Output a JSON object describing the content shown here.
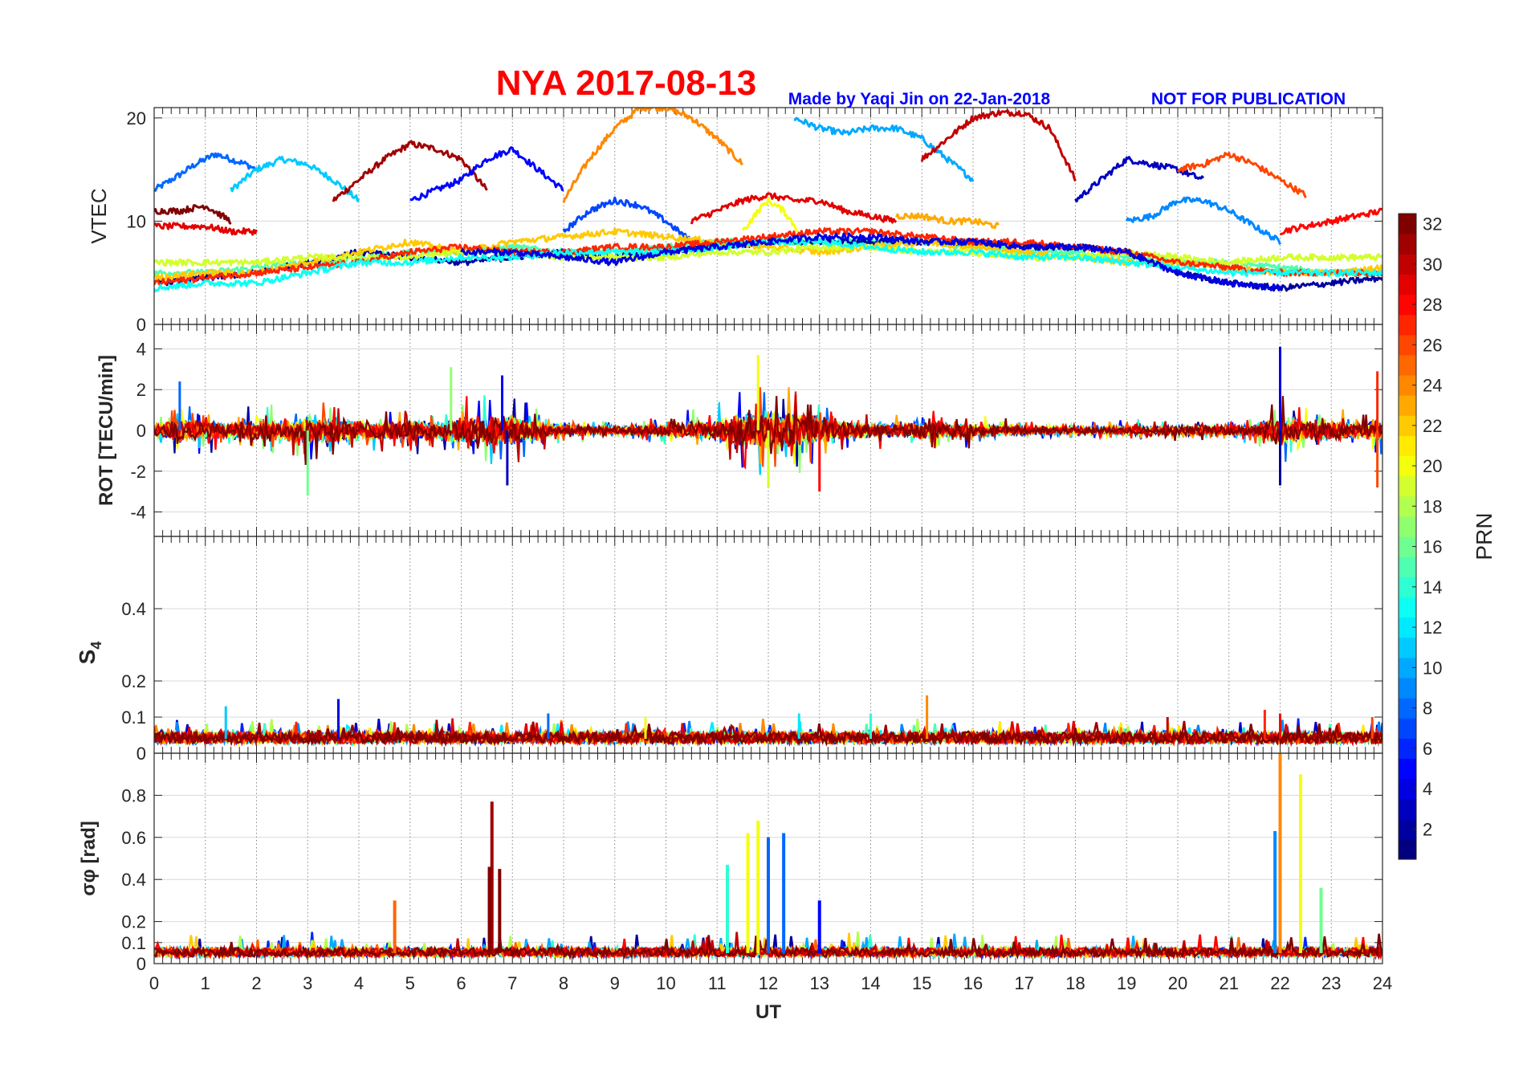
{
  "header": {
    "title": "NYA   2017-08-13",
    "credit": "Made by Yaqi Jin on 22-Jan-2018",
    "notice": "NOT FOR PUBLICATION"
  },
  "colors": {
    "title": "#ff0000",
    "credit": "#0000ff",
    "notice": "#0000ff",
    "grid": "#d9d9d9",
    "vgrid": "#888888",
    "axis": "#262626"
  },
  "chart_data": [
    {
      "type": "line",
      "panel": "VTEC",
      "ylabel": "VTEC",
      "ylim": [
        0,
        21
      ],
      "yticks": [
        0,
        10,
        20
      ],
      "xlim": [
        0,
        24
      ],
      "grid": true,
      "series": [
        {
          "prn": 8,
          "x": [
            0,
            0.5,
            0.8,
            1,
            1.2,
            1.5,
            1.8,
            2.0
          ],
          "y": [
            13,
            14.5,
            15.5,
            16,
            16.5,
            16,
            15.5,
            15
          ]
        },
        {
          "prn": 11,
          "x": [
            1.5,
            2,
            2.5,
            3,
            3.5,
            4.0
          ],
          "y": [
            13,
            15,
            16,
            15.5,
            14,
            12
          ]
        },
        {
          "prn": 31,
          "x": [
            3.5,
            4,
            4.5,
            5,
            5.5,
            6,
            6.5
          ],
          "y": [
            12,
            14,
            16,
            17.5,
            17,
            16,
            13
          ]
        },
        {
          "prn": 5,
          "x": [
            5,
            5.5,
            6,
            6.5,
            7,
            7.5,
            8.0
          ],
          "y": [
            12,
            13,
            14,
            16,
            17,
            15,
            13
          ]
        },
        {
          "prn": 24,
          "x": [
            8,
            8.5,
            9,
            9.5,
            10,
            10.5,
            11,
            11.5
          ],
          "y": [
            12,
            16,
            19,
            21,
            21,
            20,
            18,
            15.5
          ]
        },
        {
          "prn": 10,
          "x": [
            12.5,
            13,
            13.5,
            14,
            14.5,
            15,
            15.5,
            16
          ],
          "y": [
            20,
            19,
            18.5,
            19,
            19,
            18,
            16,
            14
          ]
        },
        {
          "prn": 30,
          "x": [
            15,
            15.5,
            16,
            16.5,
            17,
            17.5,
            18.0
          ],
          "y": [
            16,
            18,
            20,
            20.5,
            20.5,
            19,
            14
          ]
        },
        {
          "prn": 3,
          "x": [
            18,
            18.5,
            19,
            19.5,
            20,
            20.5
          ],
          "y": [
            12,
            14,
            16,
            15.5,
            15,
            14
          ]
        },
        {
          "prn": 26,
          "x": [
            20,
            20.5,
            21,
            21.5,
            22,
            22.5
          ],
          "y": [
            15,
            15.5,
            16.5,
            15.5,
            14,
            12.5
          ]
        },
        {
          "prn": 9,
          "x": [
            19,
            19.5,
            20,
            20.5,
            21,
            21.5,
            22
          ],
          "y": [
            10,
            10.5,
            12,
            12,
            11,
            9.5,
            8
          ]
        },
        {
          "prn": 28,
          "x": [
            22,
            22.5,
            23,
            23.5,
            24
          ],
          "y": [
            9,
            9.5,
            10,
            10.5,
            11
          ]
        },
        {
          "prn": 32,
          "x": [
            0,
            0.5,
            1,
            1.5
          ],
          "y": [
            11,
            11,
            11.5,
            10
          ]
        },
        {
          "prn": 29,
          "x": [
            0,
            0.5,
            1,
            1.5,
            2.0
          ],
          "y": [
            9.5,
            9.5,
            9.5,
            9,
            9
          ]
        },
        {
          "prn": 29,
          "x": [
            10.5,
            11,
            11.5,
            12,
            12.5,
            13,
            13.5,
            14,
            14.5
          ],
          "y": [
            10,
            11,
            12,
            12.5,
            12,
            12,
            11,
            10.5,
            10
          ]
        },
        {
          "prn": 23,
          "x": [
            14.5,
            15,
            15.5,
            16,
            16.5
          ],
          "y": [
            10.5,
            10.5,
            10,
            10,
            9.5
          ]
        },
        {
          "prn": 7,
          "x": [
            8,
            8.5,
            9,
            9.5,
            10,
            10.5
          ],
          "y": [
            9,
            11,
            12,
            11.5,
            10,
            8
          ]
        },
        {
          "prn": 20,
          "x": [
            11.5,
            11.8,
            12,
            12.3,
            12.6
          ],
          "y": [
            9,
            11,
            12,
            11,
            9
          ]
        },
        {
          "prn": 15,
          "x": [
            0,
            1,
            2,
            3,
            4,
            5,
            6,
            7,
            8,
            9,
            10,
            11,
            12,
            13,
            14,
            15,
            16,
            17,
            18,
            19,
            20,
            21,
            22,
            23,
            24
          ],
          "y": [
            5,
            5,
            5.5,
            6,
            6.5,
            7,
            7,
            7.5,
            7,
            7,
            7.5,
            8,
            8,
            8,
            8,
            8,
            7.5,
            7,
            7,
            6.5,
            6,
            6,
            5.5,
            5,
            5
          ]
        },
        {
          "prn": 2,
          "x": [
            0,
            1,
            2,
            3,
            4,
            5,
            6,
            7,
            8,
            9,
            10,
            11,
            12,
            13,
            14,
            15,
            16,
            17,
            18,
            19,
            20,
            21,
            22,
            23,
            24
          ],
          "y": [
            4,
            4.5,
            5,
            6,
            7,
            6.5,
            6,
            6.5,
            7,
            6.5,
            7,
            7.5,
            8,
            8,
            8,
            8,
            8,
            7.5,
            7.5,
            7,
            5,
            4,
            3.5,
            4,
            4.5
          ]
        },
        {
          "prn": 22,
          "x": [
            0,
            1,
            2,
            3,
            4,
            5,
            6,
            7,
            8,
            9,
            10,
            11,
            12,
            13,
            14,
            15,
            16,
            17,
            18,
            19,
            20,
            21,
            22,
            23,
            24
          ],
          "y": [
            4.5,
            5,
            5,
            6,
            7,
            8,
            7,
            8,
            8.5,
            9,
            8.5,
            8,
            7.5,
            7,
            7.5,
            8,
            7.5,
            7,
            6.5,
            6,
            6,
            5.5,
            5,
            5,
            5.5
          ]
        },
        {
          "prn": 19,
          "x": [
            0,
            1,
            2,
            3,
            4,
            5,
            6,
            7,
            8,
            9,
            10,
            11,
            12,
            13,
            14,
            15,
            16,
            17,
            18,
            19,
            20,
            21,
            22,
            23,
            24
          ],
          "y": [
            6,
            6,
            6,
            6.5,
            6.5,
            6.5,
            7,
            7,
            6.5,
            6.5,
            6.5,
            7,
            7,
            7.5,
            7.5,
            7,
            7,
            6.5,
            6.5,
            7,
            6.5,
            6,
            6.5,
            6.5,
            6.5
          ]
        },
        {
          "prn": 27,
          "x": [
            0,
            1,
            2,
            3,
            4,
            5,
            6,
            7,
            8,
            9,
            10,
            11,
            12,
            13,
            14,
            15,
            16,
            17,
            18,
            19,
            20,
            21,
            22,
            23,
            24
          ],
          "y": [
            4,
            4.5,
            5,
            5.5,
            6,
            7,
            7.5,
            7,
            7,
            7.5,
            7.5,
            8,
            8.5,
            9,
            9,
            8.5,
            8,
            8,
            7.5,
            7,
            6,
            5.5,
            5,
            5,
            5
          ]
        },
        {
          "prn": 13,
          "x": [
            0,
            1,
            2,
            3,
            4,
            5,
            6,
            7,
            8,
            9,
            10,
            11,
            12,
            13,
            14,
            15,
            16,
            17,
            18,
            19,
            20,
            21,
            22,
            23,
            24
          ],
          "y": [
            3.5,
            4,
            4,
            5,
            6,
            6,
            6.5,
            6.5,
            7,
            7,
            7,
            7.5,
            8,
            8,
            7.5,
            7,
            7,
            6.5,
            6.5,
            6,
            5.5,
            5,
            5,
            5,
            5
          ]
        },
        {
          "prn": 4,
          "x": [
            6,
            7,
            8,
            9,
            10,
            11,
            12,
            13,
            14,
            15,
            16,
            17,
            18,
            19,
            20,
            21,
            22
          ],
          "y": [
            7,
            7,
            6.5,
            6,
            7,
            7.5,
            8,
            8.5,
            8.5,
            8,
            8,
            7.5,
            7.5,
            7,
            5,
            4,
            3.5
          ]
        }
      ]
    },
    {
      "type": "line",
      "panel": "ROT",
      "ylabel": "ROT [TECU/min]",
      "ylim": [
        -5.2,
        5.2
      ],
      "yticks": [
        -4,
        -2,
        0,
        2,
        4
      ],
      "xlim": [
        0,
        24
      ],
      "grid": true,
      "activity_envelope": {
        "x": [
          0,
          0.5,
          1,
          1.5,
          2,
          2.5,
          3,
          3.5,
          4,
          4.5,
          5,
          5.5,
          6,
          6.5,
          7,
          7.5,
          8,
          8.5,
          9,
          9.5,
          10,
          10.5,
          11,
          11.5,
          12,
          12.5,
          13,
          13.5,
          14,
          14.5,
          15,
          15.5,
          16,
          16.5,
          17,
          17.5,
          18,
          18.5,
          19,
          19.5,
          20,
          20.5,
          21,
          21.5,
          22,
          22.5,
          23,
          23.5,
          24
        ],
        "amp": [
          0.6,
          1.4,
          1.0,
          1.0,
          1.2,
          1.2,
          1.6,
          1.6,
          1.2,
          1.0,
          1.2,
          1.0,
          1.6,
          1.8,
          1.8,
          1.0,
          0.6,
          0.5,
          0.5,
          0.6,
          0.8,
          1.0,
          1.2,
          2.0,
          2.4,
          2.4,
          1.6,
          1.0,
          0.8,
          0.8,
          1.0,
          0.8,
          0.8,
          0.6,
          0.5,
          0.5,
          0.4,
          0.4,
          0.5,
          0.5,
          0.5,
          0.6,
          0.5,
          0.6,
          1.8,
          1.2,
          1.0,
          0.9,
          1.2
        ]
      },
      "peaks": [
        {
          "x": 0.5,
          "y": 2.4
        },
        {
          "x": 3.0,
          "y": -3.2
        },
        {
          "x": 5.8,
          "y": 3.1
        },
        {
          "x": 6.8,
          "y": 2.7
        },
        {
          "x": 6.9,
          "y": -2.7
        },
        {
          "x": 11.8,
          "y": 3.7
        },
        {
          "x": 12.0,
          "y": -2.8
        },
        {
          "x": 13.0,
          "y": -3.0
        },
        {
          "x": 22.0,
          "y": 4.1
        },
        {
          "x": 22.0,
          "y": -2.7
        },
        {
          "x": 23.9,
          "y": 2.9
        },
        {
          "x": 23.9,
          "y": -2.8
        }
      ]
    },
    {
      "type": "line",
      "panel": "S4",
      "ylabel": "S4",
      "ylim": [
        0,
        0.6
      ],
      "yticks": [
        0,
        0.1,
        0.2,
        0.4
      ],
      "xlim": [
        0,
        24
      ],
      "grid": true,
      "baseline": 0.04,
      "peaks": [
        {
          "x": 1.4,
          "y": 0.13
        },
        {
          "x": 3.6,
          "y": 0.15
        },
        {
          "x": 7.7,
          "y": 0.11
        },
        {
          "x": 9.6,
          "y": 0.1
        },
        {
          "x": 12.6,
          "y": 0.11
        },
        {
          "x": 14.0,
          "y": 0.11
        },
        {
          "x": 15.1,
          "y": 0.16
        },
        {
          "x": 19.8,
          "y": 0.1
        },
        {
          "x": 21.7,
          "y": 0.12
        },
        {
          "x": 22.0,
          "y": 0.11
        },
        {
          "x": 23.8,
          "y": 0.1
        }
      ]
    },
    {
      "type": "line",
      "panel": "sigma-phi",
      "ylabel": "σφ [rad]",
      "ylim": [
        0,
        1.0
      ],
      "yticks": [
        0,
        0.1,
        0.2,
        0.4,
        0.6,
        0.8
      ],
      "xlim": [
        0,
        24
      ],
      "xticks": [
        0,
        1,
        2,
        3,
        4,
        5,
        6,
        7,
        8,
        9,
        10,
        11,
        12,
        13,
        14,
        15,
        16,
        17,
        18,
        19,
        20,
        21,
        22,
        23,
        24
      ],
      "xlabel": "UT",
      "grid": true,
      "baseline": 0.05,
      "peaks": [
        {
          "x": 4.7,
          "prn": 25,
          "y": 0.3
        },
        {
          "x": 6.6,
          "prn": 31,
          "y": 0.77
        },
        {
          "x": 6.55,
          "prn": 32,
          "y": 0.46
        },
        {
          "x": 6.75,
          "prn": 32,
          "y": 0.45
        },
        {
          "x": 11.2,
          "prn": 14,
          "y": 0.47
        },
        {
          "x": 11.6,
          "prn": 20,
          "y": 0.62
        },
        {
          "x": 11.8,
          "prn": 20,
          "y": 0.68
        },
        {
          "x": 12.0,
          "prn": 8,
          "y": 0.6
        },
        {
          "x": 12.3,
          "prn": 8,
          "y": 0.62
        },
        {
          "x": 13.0,
          "prn": 5,
          "y": 0.3
        },
        {
          "x": 22.0,
          "prn": 24,
          "y": 1.0
        },
        {
          "x": 21.9,
          "prn": 9,
          "y": 0.63
        },
        {
          "x": 22.4,
          "prn": 20,
          "y": 0.9
        },
        {
          "x": 22.8,
          "prn": 16,
          "y": 0.36
        }
      ]
    },
    {
      "type": "heatmap",
      "panel": "colorbar",
      "label": "PRN",
      "range": [
        1,
        32
      ],
      "ticks": [
        2,
        4,
        6,
        8,
        10,
        12,
        14,
        16,
        18,
        20,
        22,
        24,
        26,
        28,
        30,
        32
      ],
      "colormap": "jet"
    }
  ]
}
